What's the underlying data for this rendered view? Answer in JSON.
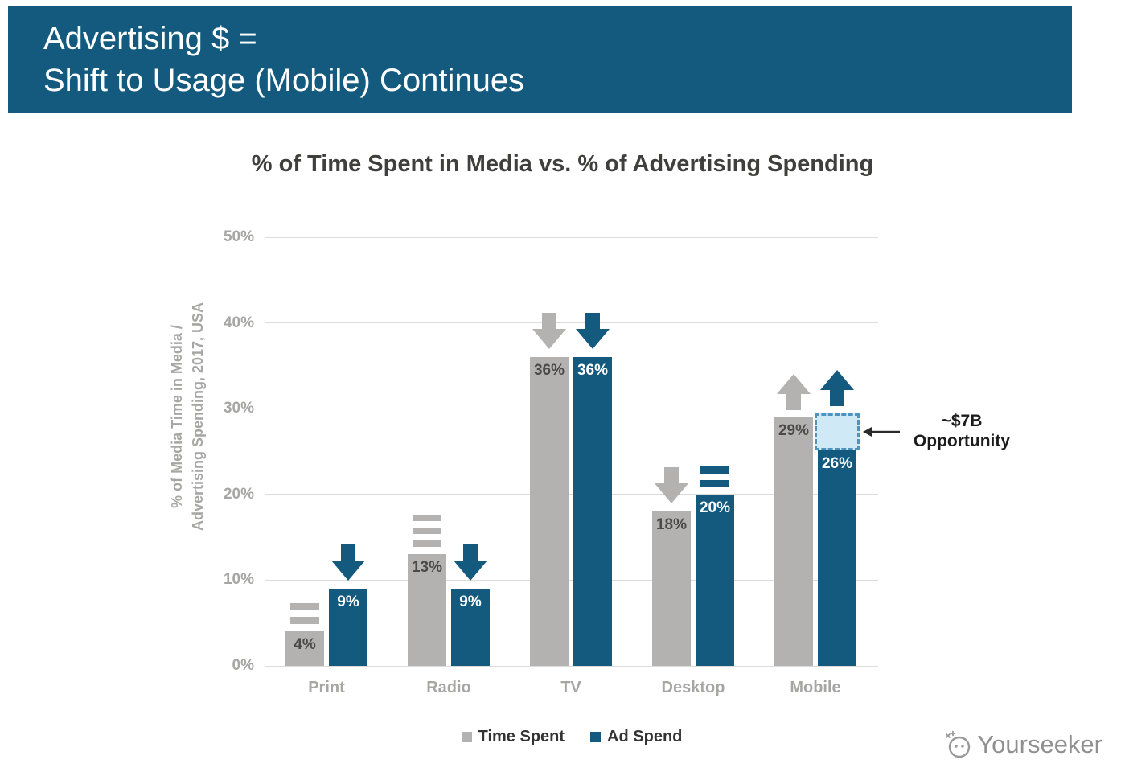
{
  "header": {
    "line1": "Advertising $ =",
    "line2": "Shift to Usage (Mobile) Continues"
  },
  "chart_data": {
    "type": "bar",
    "title": "% of Time Spent in Media vs. % of Advertising Spending",
    "ylabel": [
      "% of Media Time in Media /",
      "Advertising Spending, 2017, USA"
    ],
    "categories": [
      "Print",
      "Radio",
      "TV",
      "Desktop",
      "Mobile"
    ],
    "series": [
      {
        "name": "Time Spent",
        "color": "#b3b2b1",
        "values": [
          4,
          13,
          36,
          18,
          29
        ],
        "trends": [
          "flat2",
          "flat3",
          "down",
          "down",
          "up"
        ]
      },
      {
        "name": "Ad Spend",
        "color": "#135a7e",
        "values": [
          9,
          9,
          36,
          20,
          26
        ],
        "trends": [
          "down",
          "down",
          "down",
          "flat2",
          "up"
        ]
      }
    ],
    "ylim": [
      0,
      50
    ],
    "yticks": [
      "0%",
      "10%",
      "20%",
      "30%",
      "40%",
      "50%"
    ],
    "grid": true,
    "legend_position": "bottom",
    "annotation": {
      "category": "Mobile",
      "series": "Ad Spend",
      "line1": "~$7B",
      "line2": "Opportunity",
      "box_from": 25.1,
      "box_to": 29.5
    }
  },
  "watermark": {
    "text": "Yourseeker",
    "logo_icon": "yourseeker-logo-icon"
  },
  "colors": {
    "banner": "#135a7e",
    "bar_gray": "#b3b2b1",
    "bar_blue": "#135a7e",
    "grid": "#dbdbdb",
    "axis_text": "#a6a6a5",
    "title_text": "#3f3f3e",
    "bar_label_dark": "#4a4a49",
    "bar_label_light": "#ffffff",
    "annotation_box_fill": "#cfe9f6",
    "annotation_box_border": "#4e93bd",
    "annotation_arrow": "#2b2b2b"
  }
}
